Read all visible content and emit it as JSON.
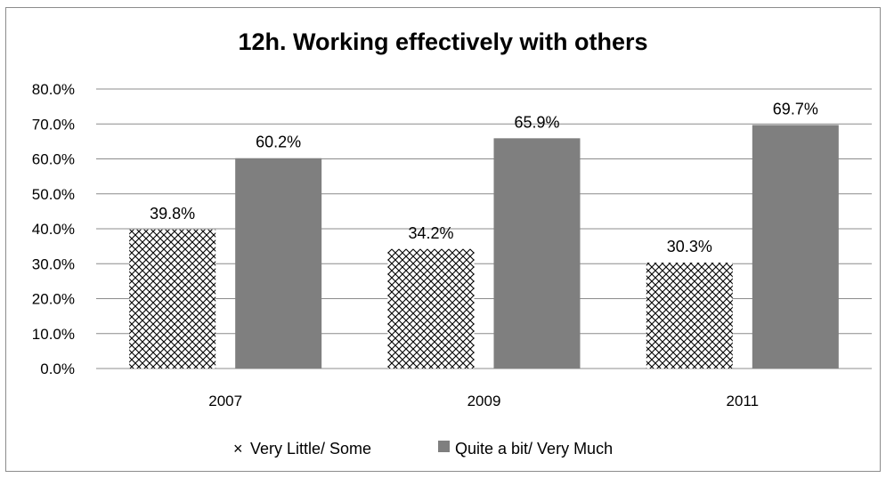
{
  "chart_data": {
    "type": "bar",
    "title": "12h. Working effectively with others",
    "categories": [
      "2007",
      "2009",
      "2011"
    ],
    "series": [
      {
        "name": "Very Little/ Some",
        "values": [
          39.8,
          34.2,
          30.3
        ],
        "labels": [
          "39.8%",
          "34.2%",
          "30.3%"
        ],
        "pattern": "crosshatch",
        "color": "#000000"
      },
      {
        "name": "Quite a bit/ Very Much",
        "values": [
          60.2,
          65.9,
          69.7
        ],
        "labels": [
          "60.2%",
          "65.9%",
          "69.7%"
        ],
        "pattern": "solid",
        "color": "#7f7f7f"
      }
    ],
    "y_ticks": [
      "0.0%",
      "10.0%",
      "20.0%",
      "30.0%",
      "40.0%",
      "50.0%",
      "60.0%",
      "70.0%",
      "80.0%"
    ],
    "ylim": [
      0,
      80
    ],
    "xlabel": "",
    "ylabel": "",
    "grid": true,
    "legend_position": "bottom"
  }
}
